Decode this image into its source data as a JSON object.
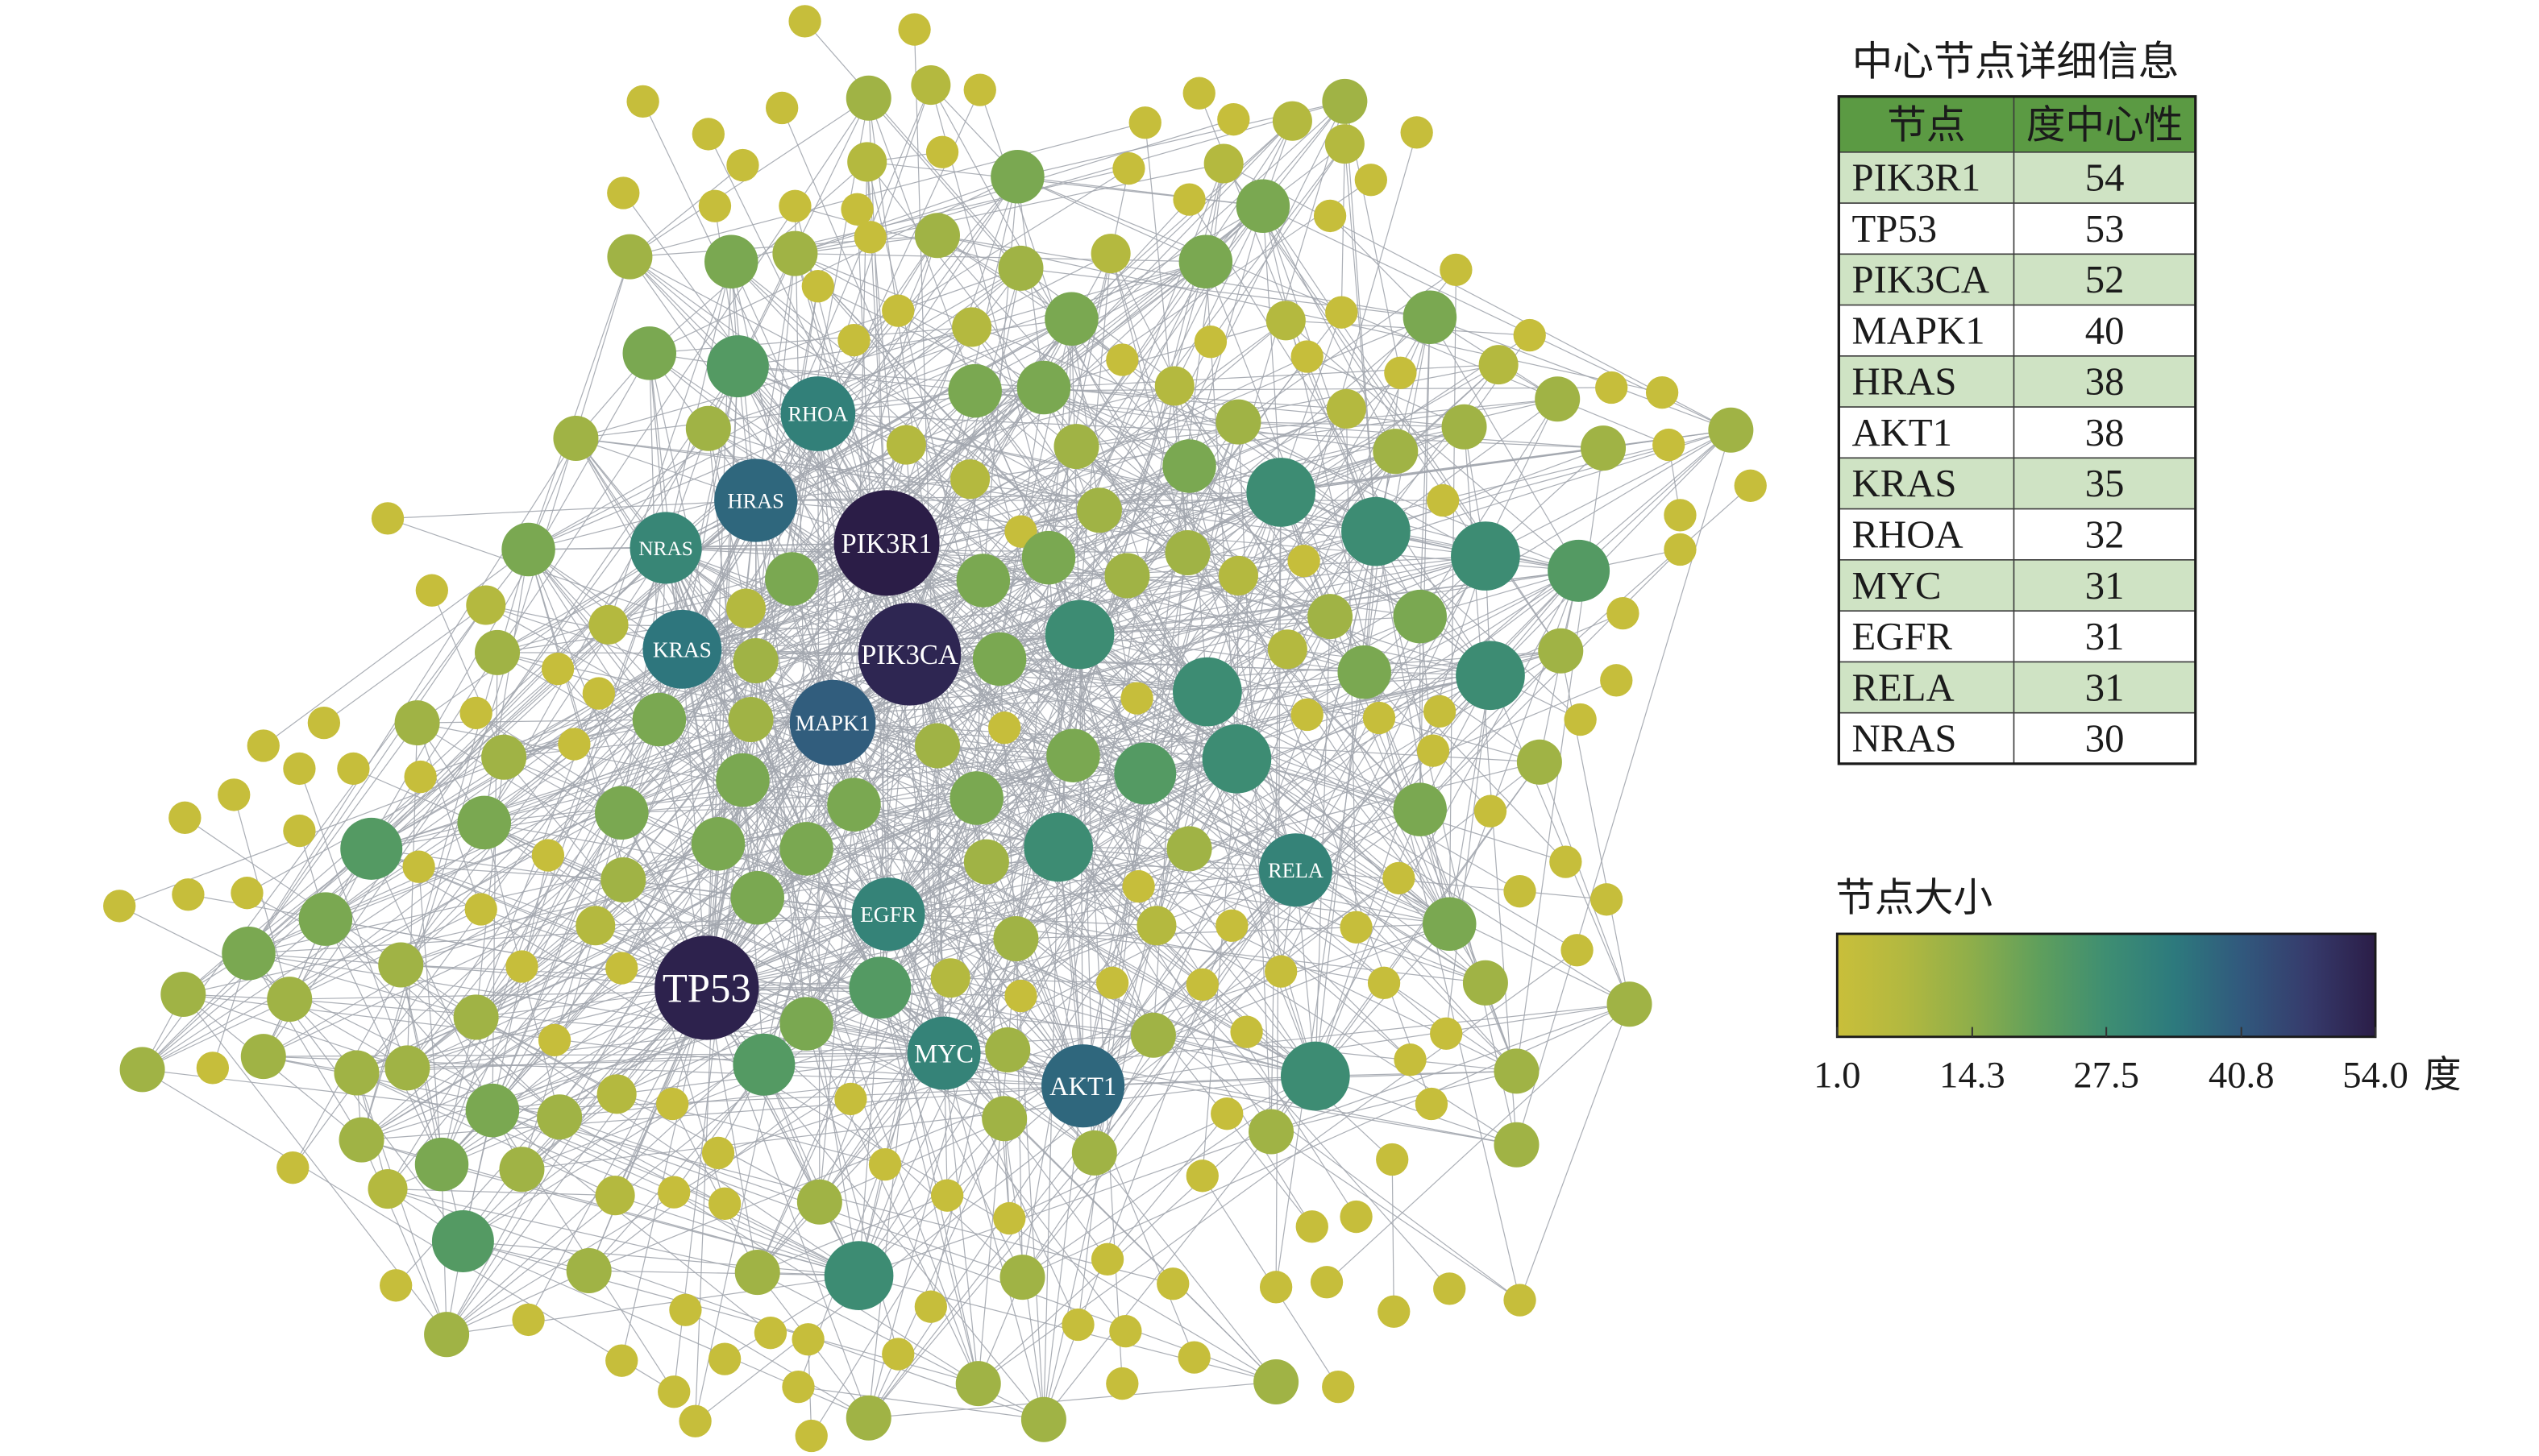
{
  "table": {
    "title": "中心节点详细信息",
    "headers": [
      "节点",
      "度中心性"
    ],
    "header_color": "#5b9a43",
    "stripe_color": "#cfe3c4",
    "rows": [
      {
        "node": "PIK3R1",
        "degree": 54
      },
      {
        "node": "TP53",
        "degree": 53
      },
      {
        "node": "PIK3CA",
        "degree": 52
      },
      {
        "node": "MAPK1",
        "degree": 40
      },
      {
        "node": "HRAS",
        "degree": 38
      },
      {
        "node": "AKT1",
        "degree": 38
      },
      {
        "node": "KRAS",
        "degree": 35
      },
      {
        "node": "RHOA",
        "degree": 32
      },
      {
        "node": "MYC",
        "degree": 31
      },
      {
        "node": "EGFR",
        "degree": 31
      },
      {
        "node": "RELA",
        "degree": 31
      },
      {
        "node": "NRAS",
        "degree": 30
      }
    ]
  },
  "legend": {
    "title": "节点大小",
    "ticks": [
      "1.0",
      "14.3",
      "27.5",
      "40.8",
      "54.0"
    ],
    "unit": "度",
    "range": [
      1,
      54
    ],
    "colors": [
      "#c9bf3a",
      "#b2b840",
      "#8eae4a",
      "#5f9f5c",
      "#3e8e72",
      "#2d7a7d",
      "#31597d",
      "#363b6c",
      "#2b1d47"
    ]
  },
  "network": {
    "edge_color": "#a2a6ae",
    "label_color": "#ffffff"
  }
}
